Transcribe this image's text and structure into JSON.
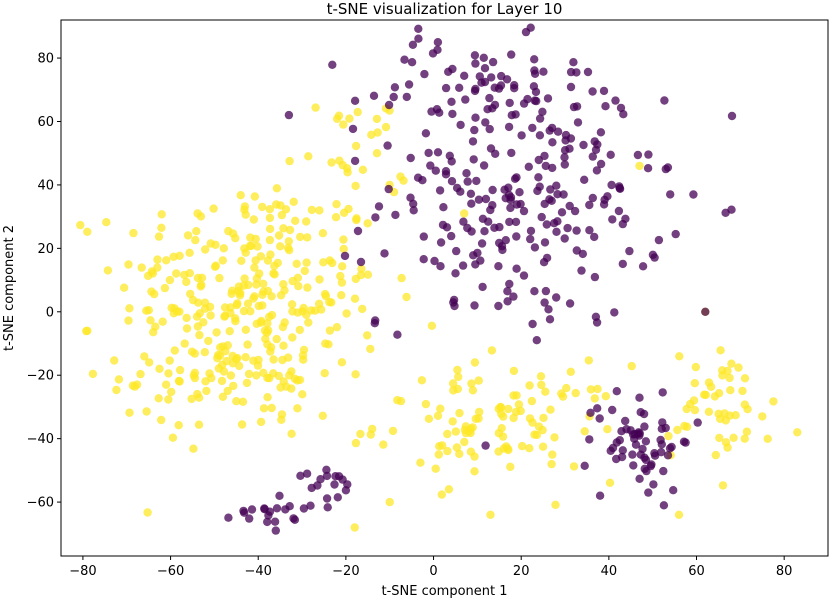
{
  "chart_data": {
    "type": "scatter",
    "title": "t-SNE visualization for Layer 10",
    "xlabel": "t-SNE component 1",
    "ylabel": "t-SNE component 2",
    "xlim": [
      -85,
      90
    ],
    "ylim": [
      -77,
      92
    ],
    "xticks": [
      -80,
      -60,
      -40,
      -20,
      0,
      20,
      40,
      60,
      80
    ],
    "yticks": [
      -60,
      -40,
      -20,
      0,
      20,
      40,
      60,
      80
    ],
    "grid": false,
    "legend": "none",
    "colors": {
      "yellow": "#fde725",
      "purple": "#440154"
    },
    "point_alpha": 0.75,
    "clusters": [
      {
        "color": "yellow",
        "center": [
          -42,
          8
        ],
        "spread": [
          15,
          17
        ],
        "count": 260
      },
      {
        "color": "yellow",
        "center": [
          -45,
          -20
        ],
        "spread": [
          13,
          10
        ],
        "count": 90
      },
      {
        "color": "yellow",
        "center": [
          -18,
          50
        ],
        "spread": [
          6,
          10
        ],
        "count": 25
      },
      {
        "color": "yellow",
        "center": [
          15,
          -35
        ],
        "spread": [
          14,
          9
        ],
        "count": 110
      },
      {
        "color": "yellow",
        "center": [
          66,
          -30
        ],
        "spread": [
          6,
          9
        ],
        "count": 45
      },
      {
        "color": "purple",
        "center": [
          20,
          35
        ],
        "spread": [
          16,
          20
        ],
        "count": 240
      },
      {
        "color": "purple",
        "center": [
          10,
          70
        ],
        "spread": [
          13,
          8
        ],
        "count": 60
      },
      {
        "color": "purple",
        "center": [
          47,
          -40
        ],
        "spread": [
          6,
          8
        ],
        "count": 60
      },
      {
        "color": "purple",
        "center": [
          -37,
          -62
        ],
        "spread": [
          4,
          3
        ],
        "count": 20
      },
      {
        "color": "purple",
        "center": [
          -22,
          -55
        ],
        "spread": [
          3,
          3
        ],
        "count": 15
      }
    ],
    "extra_points": [
      {
        "color": "yellow",
        "x": -79,
        "y": -6
      },
      {
        "color": "yellow",
        "x": 83,
        "y": -38
      },
      {
        "color": "yellow",
        "x": 75,
        "y": -33
      },
      {
        "color": "yellow",
        "x": 71,
        "y": -40
      },
      {
        "color": "yellow",
        "x": 62,
        "y": 0
      },
      {
        "color": "yellow",
        "x": -18,
        "y": -68
      },
      {
        "color": "yellow",
        "x": -10,
        "y": -60
      },
      {
        "color": "yellow",
        "x": 13,
        "y": -64
      },
      {
        "color": "yellow",
        "x": 56,
        "y": -64
      },
      {
        "color": "yellow",
        "x": 47,
        "y": 46
      },
      {
        "color": "yellow",
        "x": 7,
        "y": 31
      },
      {
        "color": "purple",
        "x": 1,
        "y": 85
      },
      {
        "color": "purple",
        "x": -33,
        "y": 62
      },
      {
        "color": "purple",
        "x": 53,
        "y": 45
      },
      {
        "color": "purple",
        "x": 54,
        "y": 37
      },
      {
        "color": "purple",
        "x": 62,
        "y": 0
      },
      {
        "color": "purple",
        "x": 49,
        "y": -57
      },
      {
        "color": "purple",
        "x": 38,
        "y": -58
      },
      {
        "color": "purple",
        "x": -36,
        "y": -69
      }
    ]
  }
}
